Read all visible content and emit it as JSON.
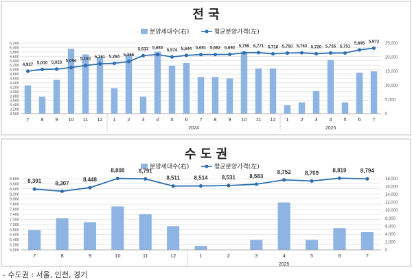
{
  "chart_data": [
    {
      "type": "bar+line",
      "title": "전 국",
      "legend": {
        "bar": "분양세대수(右)",
        "line": "평균분양가격(左)",
        "position": "top-center"
      },
      "categories": [
        "7",
        "8",
        "9",
        "10",
        "11",
        "12",
        "1",
        "2",
        "3",
        "4",
        "5",
        "6",
        "7",
        "8",
        "9",
        "10",
        "11",
        "12",
        "1",
        "2",
        "3",
        "4",
        "5",
        "6",
        "7"
      ],
      "year_groups": [
        {
          "label": "",
          "span": 6
        },
        {
          "label": "2024",
          "span": 12
        },
        {
          "label": "2025",
          "span": 7
        }
      ],
      "bar_values": [
        10000,
        6000,
        12000,
        23000,
        21000,
        20000,
        9000,
        21000,
        6000,
        22000,
        17000,
        18000,
        13000,
        13000,
        12500,
        22000,
        16000,
        16000,
        3000,
        4000,
        8000,
        19000,
        4000,
        14500,
        15000
      ],
      "line_values": [
        4927,
        5010,
        5023,
        5094,
        5183,
        5261,
        5284,
        5366,
        5633,
        5683,
        5574,
        5644,
        5681,
        5682,
        5692,
        5759,
        5771,
        5716,
        5750,
        5763,
        5720,
        5755,
        5751,
        5895,
        5972
      ],
      "line_labels": [
        "4,927",
        "5,010",
        "5,023",
        "5,094",
        "5,183",
        "5,261",
        "5,284",
        "5,366",
        "5,633",
        "5,683",
        "5,574",
        "5,644",
        "5,681",
        "5,682",
        "5,692",
        "5,759",
        "5,771",
        "5,716",
        "5,750",
        "5,763",
        "5,720",
        "5,755",
        "5,751",
        "5,895",
        "5,972"
      ],
      "y_left": {
        "min": 3000,
        "max": 6200,
        "step": 200,
        "ticks": [
          "3,000",
          "3,200",
          "3,400",
          "3,600",
          "3,800",
          "4,000",
          "4,200",
          "4,400",
          "4,600",
          "4,800",
          "5,000",
          "5,200",
          "5,400",
          "5,600",
          "5,800",
          "6,000",
          "6,200"
        ]
      },
      "y_right": {
        "min": 0,
        "max": 25000,
        "step": 5000,
        "ticks": [
          "0",
          "5,000",
          "10,000",
          "15,000",
          "20,000",
          "25,000"
        ]
      },
      "colors": {
        "bar": "#8eb4e3",
        "line": "#2e6fad",
        "grid": "#d9d9d9"
      }
    },
    {
      "type": "bar+line",
      "title": "수 도 권",
      "legend": {
        "bar": "분양세대수(右)",
        "line": "평균분양가격(左)",
        "position": "top-center"
      },
      "categories": [
        "7",
        "8",
        "9",
        "10",
        "11",
        "12",
        "1",
        "2",
        "3",
        "4",
        "5",
        "6",
        "7"
      ],
      "year_groups": [
        {
          "label": "",
          "span": 6
        },
        {
          "label": "2025",
          "span": 7
        }
      ],
      "bar_values": [
        5000,
        8000,
        7000,
        11000,
        9000,
        6000,
        1000,
        0,
        2500,
        12000,
        2500,
        5500,
        4500
      ],
      "line_values": [
        8391,
        8307,
        8448,
        8808,
        8791,
        8511,
        8514,
        8531,
        8583,
        8752,
        8709,
        8819,
        8794
      ],
      "line_labels": [
        "8,391",
        "8,307",
        "8,448",
        "8,808",
        "8,791",
        "8,511",
        "8,514",
        "8,531",
        "8,583",
        "8,752",
        "8,709",
        "8,819",
        "8,794"
      ],
      "y_left": {
        "min": 6000,
        "max": 8800,
        "step": 200,
        "ticks": [
          "6,000",
          "6,200",
          "6,400",
          "6,600",
          "6,800",
          "7,000",
          "7,200",
          "7,400",
          "7,600",
          "7,800",
          "8,000",
          "8,200",
          "8,400",
          "8,600",
          "8,800"
        ]
      },
      "y_right": {
        "min": 0,
        "max": 18000,
        "step": 2000,
        "ticks": [
          "0",
          "2,000",
          "4,000",
          "6,000",
          "8,000",
          "10,000",
          "12,000",
          "14,000",
          "16,000",
          "18,000"
        ]
      },
      "colors": {
        "bar": "#8eb4e3",
        "line": "#2e6fad",
        "grid": "#d9d9d9"
      }
    }
  ],
  "footnote": "- 수도권 : 서울, 인천, 경기"
}
